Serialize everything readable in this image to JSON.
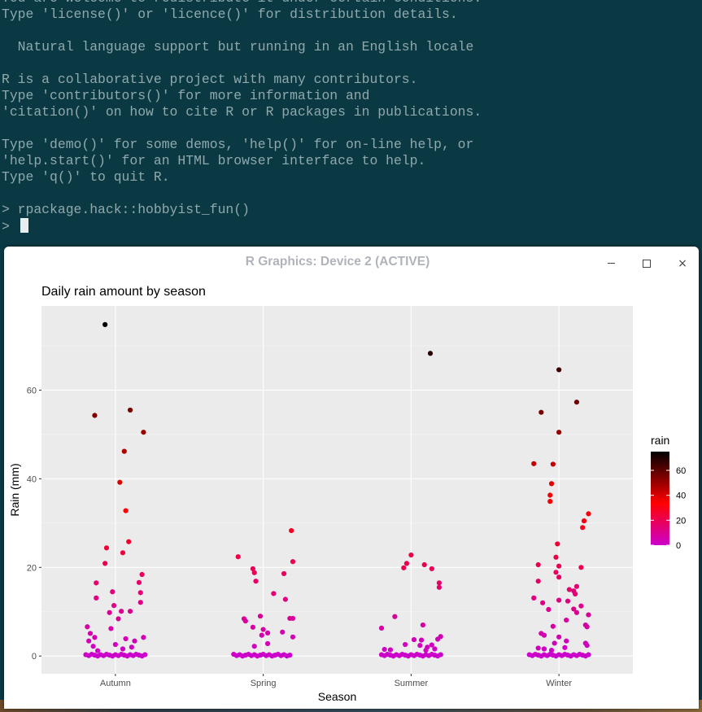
{
  "terminal": {
    "lines": [
      "You are welcome to redistribute it under certain conditions.",
      "Type 'license()' or 'licence()' for distribution details.",
      "",
      "  Natural language support but running in an English locale",
      "",
      "R is a collaborative project with many contributors.",
      "Type 'contributors()' for more information and",
      "'citation()' on how to cite R or R packages in publications.",
      "",
      "Type 'demo()' for some demos, 'help()' for on-line help, or",
      "'help.start()' for an HTML browser interface to help.",
      "Type 'q()' to quit R.",
      "",
      "> rpackage.hack::hobbyist_fun()"
    ],
    "prompt": "> ",
    "colors": {
      "background": "#0b3943",
      "text": "#8fa9ad",
      "cursor": "#e8eef0"
    }
  },
  "window": {
    "title": "R Graphics: Device 2 (ACTIVE)",
    "controls": {
      "minimize_icon": "minimize-icon",
      "maximize_icon": "maximize-icon",
      "close_icon": "close-icon",
      "close_glyph": "×"
    }
  },
  "chart_data": {
    "type": "scatter",
    "title": "Daily rain amount by season",
    "xlabel": "Season",
    "ylabel": "Rain (mm)",
    "categories": [
      "Autumn",
      "Spring",
      "Summer",
      "Winter"
    ],
    "ylim": [
      -4,
      79
    ],
    "yticks": [
      0,
      20,
      40,
      60
    ],
    "grid": true,
    "legend": {
      "title": "rain",
      "position": "right",
      "ticks": [
        0,
        20,
        40,
        60
      ],
      "color_low": "#cc00cc",
      "color_mid": "#ff0000",
      "color_high": "#000000",
      "range": [
        0,
        75
      ]
    },
    "series": [
      {
        "category": "Autumn",
        "points": [
          [
            -0.07,
            74.8
          ],
          [
            -0.14,
            54.3
          ],
          [
            0.1,
            55.5
          ],
          [
            0.19,
            50.5
          ],
          [
            0.06,
            46.2
          ],
          [
            0.03,
            39.2
          ],
          [
            0.07,
            32.8
          ],
          [
            0.09,
            25.8
          ],
          [
            -0.06,
            24.4
          ],
          [
            -0.07,
            20.9
          ],
          [
            0.05,
            23.3
          ],
          [
            -0.13,
            16.5
          ],
          [
            0.18,
            18.4
          ],
          [
            0.16,
            16.6
          ],
          [
            0.17,
            14.3
          ],
          [
            -0.02,
            14.5
          ],
          [
            -0.13,
            13.1
          ],
          [
            0.17,
            12.1
          ],
          [
            -0.01,
            11.4
          ],
          [
            0.04,
            10.1
          ],
          [
            0.1,
            10.1
          ],
          [
            -0.04,
            9.8
          ],
          [
            0.02,
            8.4
          ],
          [
            -0.19,
            6.6
          ],
          [
            -0.03,
            6.2
          ],
          [
            -0.17,
            5.1
          ],
          [
            -0.14,
            4.2
          ],
          [
            0.19,
            4.2
          ],
          [
            -0.18,
            3.4
          ],
          [
            0.13,
            3.4
          ],
          [
            0.07,
            3.9
          ],
          [
            0.0,
            2.6
          ],
          [
            -0.15,
            2.2
          ],
          [
            0.11,
            2.0
          ],
          [
            0.05,
            1.6
          ],
          [
            -0.12,
            1.2
          ],
          [
            -0.2,
            0.3
          ],
          [
            -0.18,
            0.1
          ],
          [
            -0.16,
            0.4
          ],
          [
            -0.14,
            0.2
          ],
          [
            -0.12,
            0.0
          ],
          [
            -0.1,
            0.3
          ],
          [
            -0.08,
            0.1
          ],
          [
            -0.06,
            0.4
          ],
          [
            -0.04,
            0.2
          ],
          [
            -0.02,
            0.0
          ],
          [
            0.0,
            0.3
          ],
          [
            0.02,
            0.1
          ],
          [
            0.04,
            0.4
          ],
          [
            0.06,
            0.2
          ],
          [
            0.08,
            0.0
          ],
          [
            0.1,
            0.3
          ],
          [
            0.12,
            0.1
          ],
          [
            0.14,
            0.4
          ],
          [
            0.16,
            0.2
          ],
          [
            0.18,
            0.0
          ],
          [
            0.2,
            0.3
          ]
        ]
      },
      {
        "category": "Spring",
        "points": [
          [
            0.19,
            28.3
          ],
          [
            -0.17,
            22.4
          ],
          [
            -0.07,
            19.7
          ],
          [
            0.2,
            21.3
          ],
          [
            0.14,
            18.6
          ],
          [
            -0.06,
            18.8
          ],
          [
            -0.05,
            16.9
          ],
          [
            0.07,
            14.1
          ],
          [
            0.15,
            12.8
          ],
          [
            -0.02,
            9.0
          ],
          [
            0.18,
            8.5
          ],
          [
            0.2,
            8.5
          ],
          [
            -0.13,
            8.4
          ],
          [
            -0.12,
            7.9
          ],
          [
            -0.07,
            6.5
          ],
          [
            0.13,
            5.4
          ],
          [
            0.0,
            6.0
          ],
          [
            0.03,
            5.2
          ],
          [
            -0.01,
            4.7
          ],
          [
            0.2,
            4.3
          ],
          [
            0.03,
            2.8
          ],
          [
            -0.06,
            2.2
          ],
          [
            -0.2,
            0.4
          ],
          [
            -0.18,
            0.1
          ],
          [
            -0.16,
            0.3
          ],
          [
            -0.14,
            0.0
          ],
          [
            -0.12,
            0.2
          ],
          [
            -0.1,
            0.4
          ],
          [
            -0.08,
            0.1
          ],
          [
            -0.06,
            0.3
          ],
          [
            -0.04,
            0.0
          ],
          [
            -0.02,
            0.2
          ],
          [
            0.0,
            0.4
          ],
          [
            0.02,
            0.1
          ],
          [
            0.04,
            0.3
          ],
          [
            0.06,
            0.0
          ],
          [
            0.08,
            0.2
          ],
          [
            0.1,
            0.4
          ],
          [
            0.12,
            0.1
          ],
          [
            0.14,
            0.3
          ],
          [
            0.16,
            0.0
          ],
          [
            0.18,
            0.2
          ]
        ]
      },
      {
        "category": "Summer",
        "points": [
          [
            0.13,
            68.3
          ],
          [
            0.0,
            22.8
          ],
          [
            -0.03,
            20.9
          ],
          [
            0.09,
            20.6
          ],
          [
            -0.05,
            19.9
          ],
          [
            0.14,
            19.7
          ],
          [
            0.19,
            16.5
          ],
          [
            0.19,
            15.5
          ],
          [
            -0.11,
            8.9
          ],
          [
            0.08,
            7.0
          ],
          [
            -0.2,
            6.3
          ],
          [
            0.2,
            4.4
          ],
          [
            0.18,
            3.8
          ],
          [
            0.07,
            3.6
          ],
          [
            0.02,
            3.7
          ],
          [
            0.06,
            2.4
          ],
          [
            0.14,
            2.5
          ],
          [
            0.11,
            2.0
          ],
          [
            -0.04,
            2.6
          ],
          [
            0.16,
            1.6
          ],
          [
            -0.18,
            1.5
          ],
          [
            -0.14,
            1.4
          ],
          [
            0.1,
            1.3
          ],
          [
            -0.2,
            0.3
          ],
          [
            -0.18,
            0.1
          ],
          [
            -0.16,
            0.4
          ],
          [
            -0.14,
            0.2
          ],
          [
            -0.12,
            0.0
          ],
          [
            -0.1,
            0.3
          ],
          [
            -0.08,
            0.1
          ],
          [
            -0.06,
            0.4
          ],
          [
            -0.04,
            0.2
          ],
          [
            -0.02,
            0.0
          ],
          [
            0.0,
            0.3
          ],
          [
            0.02,
            0.1
          ],
          [
            0.04,
            0.4
          ],
          [
            0.06,
            0.2
          ],
          [
            0.08,
            0.0
          ],
          [
            0.1,
            0.3
          ],
          [
            0.12,
            0.1
          ],
          [
            0.14,
            0.4
          ],
          [
            0.16,
            0.2
          ],
          [
            0.18,
            0.0
          ],
          [
            0.2,
            0.3
          ]
        ]
      },
      {
        "category": "Winter",
        "points": [
          [
            0.0,
            64.6
          ],
          [
            0.12,
            57.3
          ],
          [
            -0.12,
            55.0
          ],
          [
            0.0,
            50.5
          ],
          [
            -0.17,
            43.4
          ],
          [
            -0.04,
            43.3
          ],
          [
            -0.05,
            38.9
          ],
          [
            -0.06,
            36.3
          ],
          [
            -0.06,
            34.9
          ],
          [
            0.2,
            32.1
          ],
          [
            0.17,
            30.5
          ],
          [
            0.16,
            29.0
          ],
          [
            -0.01,
            25.3
          ],
          [
            -0.02,
            22.3
          ],
          [
            0.15,
            20.0
          ],
          [
            -0.14,
            20.6
          ],
          [
            0.0,
            20.3
          ],
          [
            -0.02,
            18.9
          ],
          [
            0.0,
            17.8
          ],
          [
            -0.14,
            16.9
          ],
          [
            0.12,
            15.7
          ],
          [
            0.07,
            15.0
          ],
          [
            0.1,
            14.7
          ],
          [
            0.11,
            14.0
          ],
          [
            0.0,
            12.6
          ],
          [
            0.06,
            12.4
          ],
          [
            -0.17,
            13.1
          ],
          [
            -0.11,
            12.0
          ],
          [
            0.15,
            11.3
          ],
          [
            -0.07,
            10.5
          ],
          [
            0.1,
            10.6
          ],
          [
            0.12,
            9.8
          ],
          [
            0.2,
            9.3
          ],
          [
            0.05,
            8.1
          ],
          [
            0.18,
            7.0
          ],
          [
            0.19,
            6.6
          ],
          [
            -0.04,
            6.7
          ],
          [
            -0.12,
            5.1
          ],
          [
            -0.1,
            4.7
          ],
          [
            0.0,
            4.3
          ],
          [
            0.05,
            3.4
          ],
          [
            0.18,
            2.9
          ],
          [
            0.19,
            2.4
          ],
          [
            -0.03,
            2.9
          ],
          [
            -0.14,
            1.8
          ],
          [
            -0.1,
            1.6
          ],
          [
            0.04,
            1.9
          ],
          [
            -0.05,
            1.3
          ],
          [
            -0.2,
            0.3
          ],
          [
            -0.18,
            0.1
          ],
          [
            -0.16,
            0.4
          ],
          [
            -0.14,
            0.2
          ],
          [
            -0.12,
            0.0
          ],
          [
            -0.1,
            0.3
          ],
          [
            -0.08,
            0.1
          ],
          [
            -0.06,
            0.4
          ],
          [
            -0.04,
            0.2
          ],
          [
            -0.02,
            0.0
          ],
          [
            0.0,
            0.3
          ],
          [
            0.02,
            0.1
          ],
          [
            0.04,
            0.4
          ],
          [
            0.06,
            0.2
          ],
          [
            0.08,
            0.0
          ],
          [
            0.1,
            0.3
          ],
          [
            0.12,
            0.1
          ],
          [
            0.14,
            0.4
          ],
          [
            0.16,
            0.2
          ],
          [
            0.18,
            0.0
          ],
          [
            0.2,
            0.3
          ]
        ]
      }
    ]
  }
}
